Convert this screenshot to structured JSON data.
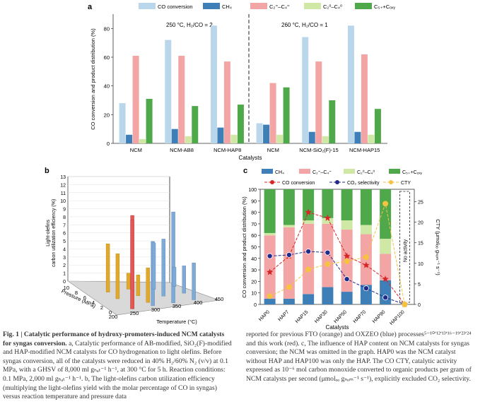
{
  "panel_a": {
    "letter": "a",
    "condition_left": "250 °C, H₂/CO = 2",
    "condition_right": "260 °C, H₂/CO = 1",
    "legend": [
      "CO conversion",
      "CH₄",
      "C₂⁼–C₄⁼",
      "C₂⁰–C₄⁰",
      "C₅₊+Cₒₓᵧ"
    ],
    "colors": {
      "co": "#b9d6ea",
      "ch4": "#3f7fb8",
      "c2c4o": "#f3a5a6",
      "c2c4p": "#cfe8a6",
      "c5": "#4fa84a"
    }
  },
  "panel_b": {
    "letter": "b",
    "zlabel_line1": "Light-olefins",
    "zlabel_line2": "carbon utilization efficiency (%)",
    "xlabel": "Temperature (°C)",
    "ylabel": "Pressure (MPa)",
    "zticks": [
      "13",
      "12",
      "11",
      "10",
      "9",
      "8",
      "7",
      "6",
      "5",
      "4",
      "3",
      "2",
      "1",
      "0"
    ],
    "xticks": [
      "200",
      "250",
      "300",
      "350",
      "400",
      "450"
    ],
    "yticks": [
      "10",
      "8",
      "6",
      "4",
      "2",
      "0"
    ]
  },
  "panel_c": {
    "letter": "c",
    "legend_top": [
      "CH₄",
      "C₂⁼–C₄⁼",
      "C₂⁰–C₄⁰",
      "C₅₊+Cₒₓᵧ"
    ],
    "legend_line": [
      "CO conversion",
      "CO₂ selectivity",
      "CTY"
    ],
    "no_activity": "No activity",
    "colors": {
      "ch4": "#3f7fb8",
      "c2c4o": "#f3a5a6",
      "c2c4p": "#cfe8a6",
      "c5": "#4fa84a",
      "co": "#d62728",
      "co2": "#1f2a8a",
      "cty": "#f5c242"
    }
  },
  "chart_data": [
    {
      "type": "bar",
      "title": "",
      "xlabel": "Catalysts",
      "ylabel": "CO conversion and product distribution (%)",
      "ylim": [
        0,
        90
      ],
      "yticks": [
        0,
        20,
        40,
        60,
        80
      ],
      "categories": [
        "NCM",
        "NCM-AB8",
        "NCM-HAP8",
        "NCM",
        "NCM-SiO₂(F)-15",
        "NCM-HAP15"
      ],
      "series": [
        {
          "name": "CO conversion",
          "values": [
            28,
            72,
            82,
            14,
            74,
            82
          ]
        },
        {
          "name": "CH₄",
          "values": [
            6,
            10,
            11,
            13,
            8,
            8
          ]
        },
        {
          "name": "C₂⁼–C₄⁼",
          "values": [
            61,
            61,
            57,
            42,
            57,
            62
          ]
        },
        {
          "name": "C₂⁰–C₄⁰",
          "values": [
            3,
            5,
            6,
            6,
            5,
            6
          ]
        },
        {
          "name": "C₅₊+Cₒₓᵧ",
          "values": [
            31,
            26,
            27,
            39,
            30,
            24
          ]
        }
      ]
    },
    {
      "type": "bar",
      "title": "",
      "xlabel": "Temperature (°C)",
      "ylabel": "Light-olefins carbon utilization efficiency (%)",
      "zlim": [
        0,
        13
      ],
      "series": [
        {
          "name": "orange",
          "points": [
            [
              250,
              1,
              4.0
            ],
            [
              250,
              4,
              5.6
            ],
            [
              250,
              6,
              6.0
            ],
            [
              300,
              2,
              4.3
            ],
            [
              300,
              4,
              2.6
            ],
            [
              300,
              6,
              2.0
            ]
          ]
        },
        {
          "name": "blue",
          "points": [
            [
              300,
              1,
              8.0
            ],
            [
              350,
              1,
              11.3
            ],
            [
              350,
              3,
              7.1
            ],
            [
              350,
              5,
              5.8
            ],
            [
              400,
              1,
              4.6
            ],
            [
              400,
              3,
              3.4
            ],
            [
              400,
              5,
              2.4
            ]
          ]
        },
        {
          "name": "red",
          "points": [
            [
              250,
              1,
              11.6
            ],
            [
              250,
              1,
              11.0
            ]
          ]
        }
      ]
    },
    {
      "type": "bar",
      "title": "",
      "xlabel": "Catalysts",
      "ylabel": "CO conversion and product distribution (%)",
      "y2label": "CTY (μmolₒₒ gₙₒₘ⁻¹ s⁻¹)",
      "ylim": [
        0,
        100
      ],
      "y2lim": [
        0,
        28
      ],
      "yticks": [
        0,
        10,
        20,
        30,
        40,
        50,
        60,
        70,
        80,
        90,
        100
      ],
      "y2ticks": [
        0,
        5,
        10,
        15,
        20,
        25
      ],
      "categories": [
        "HAP0",
        "HAP7",
        "HAP15",
        "HAP30",
        "HAP50",
        "HAP70",
        "HAP90",
        "HAP100"
      ],
      "series": [
        {
          "name": "CH₄",
          "values": [
            5,
            5,
            9,
            15,
            11,
            17,
            21,
            0
          ]
        },
        {
          "name": "C₂⁼–C₄⁼",
          "values": [
            55,
            62,
            61,
            55,
            54,
            44,
            23,
            0
          ]
        },
        {
          "name": "C₂⁰–C₄⁰",
          "values": [
            2,
            2,
            3,
            5,
            8,
            8,
            13,
            0
          ]
        },
        {
          "name": "C₅₊+Cₒₓᵧ",
          "values": [
            38,
            31,
            27,
            25,
            27,
            31,
            43,
            0
          ]
        },
        {
          "name": "CO conversion",
          "values": [
            28,
            42,
            80,
            75,
            42,
            34,
            22,
            0
          ]
        },
        {
          "name": "CO₂ selectivity",
          "values": [
            42,
            43,
            46,
            45,
            22,
            14,
            6,
            0
          ]
        },
        {
          "name": "CTY",
          "values": [
            2.0,
            4.2,
            8.5,
            9.8,
            10.5,
            11.5,
            24.5,
            0
          ]
        }
      ]
    }
  ],
  "caption": {
    "title": "Fig. 1 | Catalytic performance of hydroxy-promoters-induced NCM catalysts for syngas conversion.",
    "left_text": " a, Catalytic performance of AB-modified, SiO₂(F)-modified and HAP-modified NCM catalysts for CO hydrogenation to light olefins. Before syngas conversion, all of the catalysts were reduced in 40% H₂/60% N₂ (v/v) at 0.1 MPa, with a GHSV of 8,000 ml gₕₐₜ⁻¹ h⁻¹, at 300 °C for 5 h. Reaction conditions: 0.1 MPa, 2,000 ml gₕₐₜ⁻¹ h⁻¹. b, The light-olefins carbon utilization efficiency (multiplying the light-olefins yield with the molar percentage of CO in syngas) versus reaction temperature and pressure data",
    "right_text": "reported for previous FTO (orange) and OXZEO (blue) processes⁵⁻¹⁰ʹ¹²ʹ¹³ʹ¹⁶⁻¹⁹ʹ²³ʹ²⁴ and this work (red). c, The influence of HAP content on NCM catalysts for syngas conversion; the NCM was omitted in the graph. HAP0 was the NCM catalyst without HAP and HAP100 was only the HAP. The CO CTY, catalytic activity expressed as 10⁻⁶ mol carbon monoxide converted to organic products per gram of NCM catalysts per second (μmolₒₒ gₙₒₘ⁻¹ s⁻¹), explicitly excluded CO₂ selectivity."
  }
}
